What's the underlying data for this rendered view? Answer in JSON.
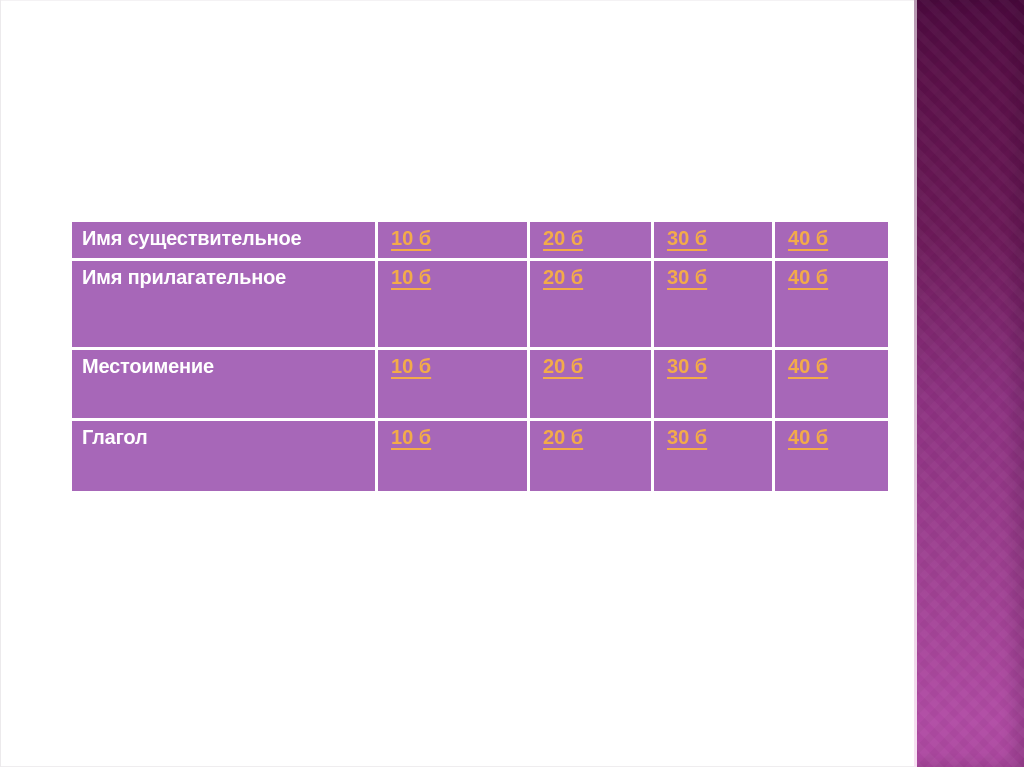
{
  "slide": {
    "background": "#ffffff"
  },
  "board": {
    "cell_color": "#a767b8",
    "divider_color": "#ffffff",
    "label_text_color": "#ffffff",
    "link_color": "#f3ab49",
    "rows": [
      {
        "category": "Имя существительное",
        "points": [
          "10 б",
          "20 б",
          "30 б",
          "40 б"
        ]
      },
      {
        "category": "Имя прилагательное",
        "points": [
          "10 б",
          "20 б",
          "30 б",
          "40 б"
        ]
      },
      {
        "category": "Местоимение",
        "points": [
          "10 б",
          "20 б",
          "30 б",
          "40 б"
        ]
      },
      {
        "category": "Глагол",
        "points": [
          "10 б",
          "20 б",
          "30 б",
          "40 б"
        ]
      }
    ]
  },
  "accent_bar": {
    "top_color": "#4c0a3f",
    "middle_color": "#8c3180",
    "bottom_color": "#b04ba4",
    "edge_highlight_color": "#f8e0f3"
  }
}
